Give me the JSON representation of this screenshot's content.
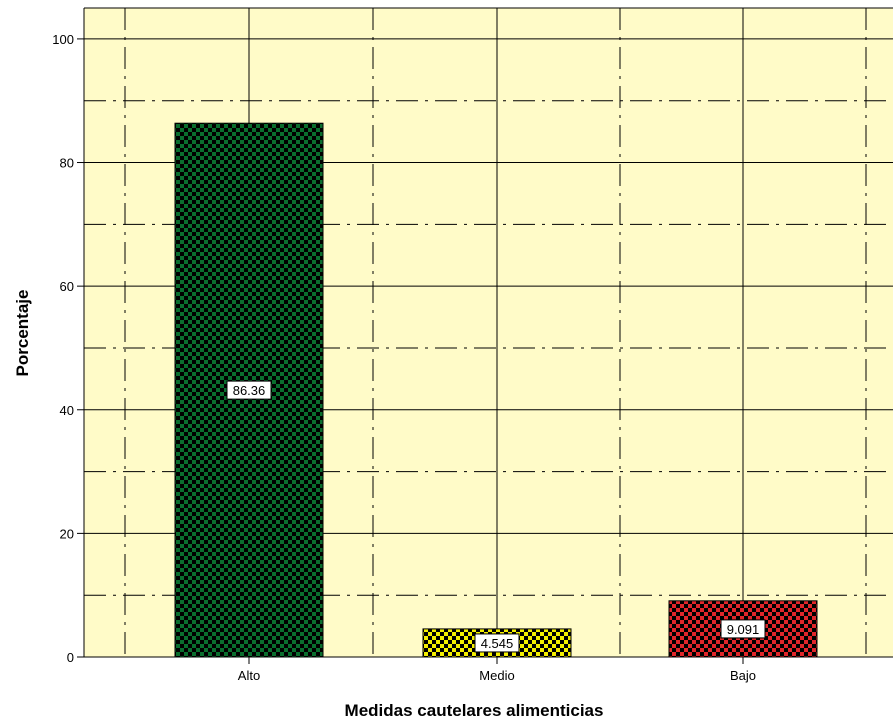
{
  "chart_data": {
    "type": "bar",
    "title": "",
    "xlabel": "Medidas cautelares alimenticias",
    "ylabel": "Porcentaje",
    "categories": [
      "Alto",
      "Medio",
      "Bajo"
    ],
    "values": [
      86.36,
      4.545,
      9.091
    ],
    "data_labels": [
      "86.36",
      "4.545",
      "9.091"
    ],
    "yticks": [
      0,
      20,
      40,
      60,
      80,
      100
    ],
    "ytick_labels": [
      "0",
      "20",
      "40",
      "60",
      "80",
      "100"
    ],
    "ylim": [
      0,
      105
    ],
    "grid": true,
    "legend": "none",
    "colors": {
      "plot_background": "#fffbc8",
      "bar_fills": [
        "#0a6e2e",
        "#f4ef00",
        "#e0262a"
      ],
      "checker": "#000000"
    }
  }
}
